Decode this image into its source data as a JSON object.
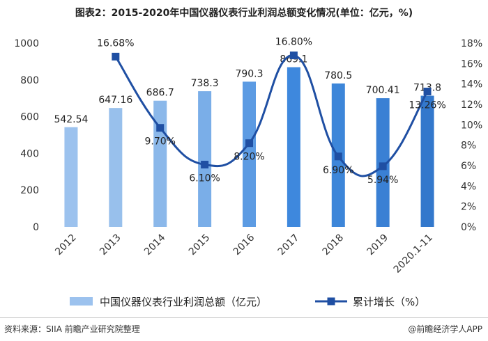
{
  "title": "图表2：2015-2020年中国仪器仪表行业利润总额变化情况(单位：亿元，%)",
  "chart_data": {
    "type": "bar",
    "categories": [
      "2012",
      "2013",
      "2014",
      "2015",
      "2016",
      "2017",
      "2018",
      "2019",
      "2020.1-11"
    ],
    "series": [
      {
        "name": "中国仪器仪表行业利润总额（亿元）",
        "type": "bar",
        "axis": "left",
        "values": [
          542.54,
          647.16,
          686.7,
          738.3,
          790.3,
          869.1,
          780.5,
          700.41,
          713.8
        ],
        "labels": [
          "542.54",
          "647.16",
          "686.7",
          "738.3",
          "790.3",
          "869.1",
          "780.5",
          "700.41",
          "713.8"
        ]
      },
      {
        "name": "累计增长（%）",
        "type": "line",
        "axis": "right",
        "values": [
          null,
          16.68,
          9.7,
          6.1,
          8.2,
          16.8,
          6.9,
          5.94,
          13.26
        ],
        "labels": [
          "",
          "16.68%",
          "9.70%",
          "6.10%",
          "8.20%",
          "16.80%",
          "6.90%",
          "5.94%",
          "13.26%"
        ]
      }
    ],
    "y_left": {
      "min": 0,
      "max": 1000,
      "ticks": [
        "0",
        "200",
        "400",
        "600",
        "800",
        "1000"
      ]
    },
    "y_right": {
      "min": 0,
      "max": 18,
      "ticks": [
        "0%",
        "2%",
        "4%",
        "6%",
        "8%",
        "10%",
        "12%",
        "14%",
        "16%",
        "18%"
      ]
    },
    "grid": false,
    "legend_position": "bottom",
    "colors": {
      "bars": [
        "#9cc2ee",
        "#98c0ec",
        "#8bb8ea",
        "#7aaee8",
        "#5c9be3",
        "#3e88dd",
        "#3d86d9",
        "#3a80d4",
        "#3378cc"
      ],
      "line": "#1f4fa3",
      "legend_bar": "#9cc2ee"
    }
  },
  "footer": {
    "source": "资料来源：SIIA 前瞻产业研究院整理",
    "brand": "@前瞻经济学人APP"
  }
}
